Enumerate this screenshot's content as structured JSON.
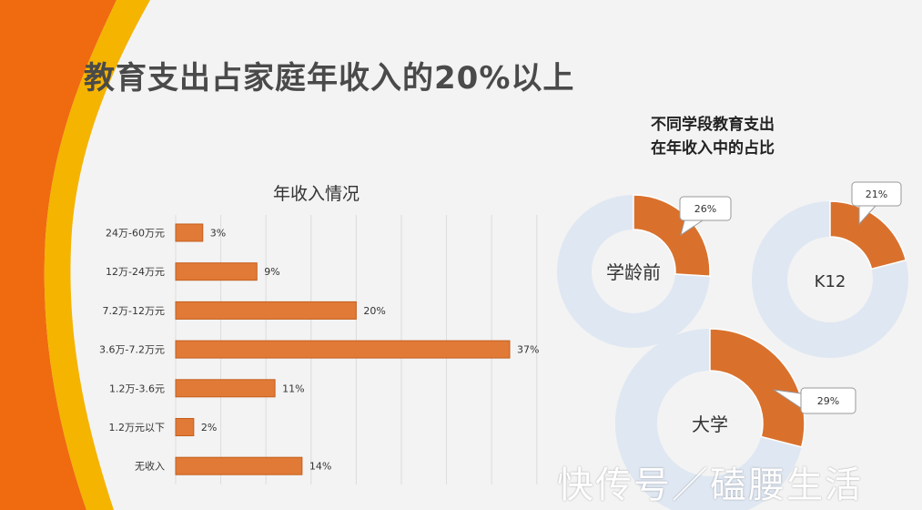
{
  "title": "教育支出占家庭年收入的20%以上",
  "donut_heading": [
    "不同学段教育支出",
    "在年收入中的占比"
  ],
  "watermark": "快传号／磕腰生活",
  "colors": {
    "bar": "#e07a36",
    "bar_stroke": "#c45f1e",
    "donut_ring": "#dfe7f2",
    "donut_slice": "#d9712d",
    "accent_orange": "#f06a10",
    "accent_yellow": "#f5b400"
  },
  "chart_data": [
    {
      "type": "bar",
      "orientation": "horizontal",
      "title": "年收入情况",
      "categories": [
        "24万-60万元",
        "12万-24万元",
        "7.2万-12万元",
        "3.6万-7.2万元",
        "1.2万-3.6元",
        "1.2万元以下",
        "无收入"
      ],
      "values": [
        3,
        9,
        20,
        37,
        11,
        2,
        14
      ],
      "value_labels": [
        "3%",
        "9%",
        "20%",
        "37%",
        "11%",
        "2%",
        "14%"
      ],
      "unit": "%",
      "xlim": [
        0,
        40
      ],
      "grid": true
    },
    {
      "type": "pie",
      "donut": true,
      "center_label": "学龄前",
      "values": [
        26,
        74
      ],
      "value_label": "26%"
    },
    {
      "type": "pie",
      "donut": true,
      "center_label": "K12",
      "values": [
        21,
        79
      ],
      "value_label": "21%"
    },
    {
      "type": "pie",
      "donut": true,
      "center_label": "大学",
      "values": [
        29,
        71
      ],
      "value_label": "29%"
    }
  ]
}
